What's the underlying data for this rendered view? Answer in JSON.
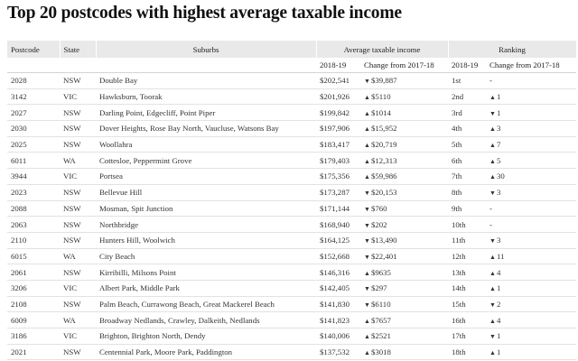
{
  "title": "Top 20 postcodes with highest average taxable income",
  "headers": {
    "postcode": "Postcode",
    "state": "State",
    "suburbs": "Suburbs",
    "avg_income": "Average taxable income",
    "ranking": "Ranking",
    "col_2018_19": "2018-19",
    "col_change": "Change from 2017-18",
    "col_rank_2018_19": "2018-19",
    "col_rank_change": "Change from 2017-18"
  },
  "arrow_up": "▲",
  "arrow_down": "▼",
  "rows": [
    {
      "postcode": "2028",
      "state": "NSW",
      "suburbs": "Double Bay",
      "income": "$202,541",
      "change_dir": "down",
      "change": "$39,887",
      "rank": "1st",
      "rank_dir": "",
      "rank_change": "-"
    },
    {
      "postcode": "3142",
      "state": "VIC",
      "suburbs": "Hawksburn, Toorak",
      "income": "$201,926",
      "change_dir": "up",
      "change": "$5110",
      "rank": "2nd",
      "rank_dir": "up",
      "rank_change": "1"
    },
    {
      "postcode": "2027",
      "state": "NSW",
      "suburbs": "Darling Point, Edgecliff, Point Piper",
      "income": "$199,842",
      "change_dir": "up",
      "change": "$1014",
      "rank": "3rd",
      "rank_dir": "down",
      "rank_change": "1"
    },
    {
      "postcode": "2030",
      "state": "NSW",
      "suburbs": "Dover Heights, Rose Bay North, Vaucluse, Watsons Bay",
      "income": "$197,906",
      "change_dir": "up",
      "change": "$15,952",
      "rank": "4th",
      "rank_dir": "up",
      "rank_change": "3"
    },
    {
      "postcode": "2025",
      "state": "NSW",
      "suburbs": "Woollahra",
      "income": "$183,417",
      "change_dir": "up",
      "change": "$20,719",
      "rank": "5th",
      "rank_dir": "up",
      "rank_change": "7"
    },
    {
      "postcode": "6011",
      "state": "WA",
      "suburbs": "Cottesloe, Peppermint Grove",
      "income": "$179,403",
      "change_dir": "up",
      "change": "$12,313",
      "rank": "6th",
      "rank_dir": "up",
      "rank_change": "5"
    },
    {
      "postcode": "3944",
      "state": "VIC",
      "suburbs": "Portsea",
      "income": "$175,356",
      "change_dir": "up",
      "change": "$59,986",
      "rank": "7th",
      "rank_dir": "up",
      "rank_change": "30"
    },
    {
      "postcode": "2023",
      "state": "NSW",
      "suburbs": "Bellevue Hill",
      "income": "$173,287",
      "change_dir": "down",
      "change": "$20,153",
      "rank": "8th",
      "rank_dir": "down",
      "rank_change": "3"
    },
    {
      "postcode": "2088",
      "state": "NSW",
      "suburbs": "Mosman, Spit Junction",
      "income": "$171,144",
      "change_dir": "down",
      "change": "$760",
      "rank": "9th",
      "rank_dir": "",
      "rank_change": "-"
    },
    {
      "postcode": "2063",
      "state": "NSW",
      "suburbs": "Northbridge",
      "income": "$168,940",
      "change_dir": "down",
      "change": "$202",
      "rank": "10th",
      "rank_dir": "",
      "rank_change": "-"
    },
    {
      "postcode": "2110",
      "state": "NSW",
      "suburbs": "Hunters Hill, Woolwich",
      "income": "$164,125",
      "change_dir": "down",
      "change": "$13,490",
      "rank": "11th",
      "rank_dir": "down",
      "rank_change": "3"
    },
    {
      "postcode": "6015",
      "state": "WA",
      "suburbs": "City Beach",
      "income": "$152,668",
      "change_dir": "down",
      "change": "$22,401",
      "rank": "12th",
      "rank_dir": "up",
      "rank_change": "11"
    },
    {
      "postcode": "2061",
      "state": "NSW",
      "suburbs": "Kirribilli, Milsons Point",
      "income": "$146,316",
      "change_dir": "up",
      "change": "$9635",
      "rank": "13th",
      "rank_dir": "up",
      "rank_change": "4"
    },
    {
      "postcode": "3206",
      "state": "VIC",
      "suburbs": "Albert Park, Middle Park",
      "income": "$142,405",
      "change_dir": "down",
      "change": "$297",
      "rank": "14th",
      "rank_dir": "up",
      "rank_change": "1"
    },
    {
      "postcode": "2108",
      "state": "NSW",
      "suburbs": "Palm Beach, Currawong Beach, Great Mackerel Beach",
      "income": "$141,830",
      "change_dir": "down",
      "change": "$6110",
      "rank": "15th",
      "rank_dir": "down",
      "rank_change": "2"
    },
    {
      "postcode": "6009",
      "state": "WA",
      "suburbs": "Broadway Nedlands, Crawley, Dalkeith, Nedlands",
      "income": "$141,823",
      "change_dir": "up",
      "change": "$7657",
      "rank": "16th",
      "rank_dir": "up",
      "rank_change": "4"
    },
    {
      "postcode": "3186",
      "state": "VIC",
      "suburbs": "Brighton, Brighton North, Dendy",
      "income": "$140,006",
      "change_dir": "up",
      "change": "$2521",
      "rank": "17th",
      "rank_dir": "down",
      "rank_change": "1"
    },
    {
      "postcode": "2021",
      "state": "NSW",
      "suburbs": "Centennial Park, Moore Park, Paddington",
      "income": "$137,532",
      "change_dir": "up",
      "change": "$3018",
      "rank": "18th",
      "rank_dir": "up",
      "rank_change": "1"
    }
  ]
}
